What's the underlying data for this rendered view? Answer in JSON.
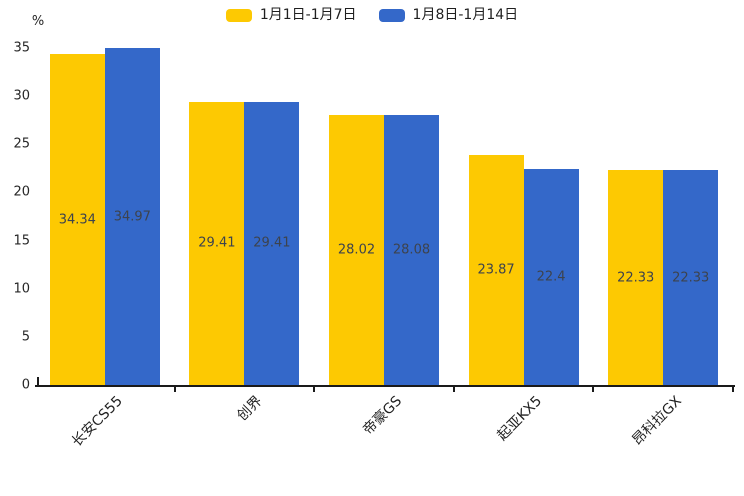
{
  "chart_data": {
    "type": "bar",
    "title": "",
    "unit_label": "%",
    "categories": [
      "长安CS55",
      "创界",
      "帝豪GS",
      "起亚KX5",
      "昂科拉GX"
    ],
    "series": [
      {
        "name": "1月1日-1月7日",
        "color": "#FDC902",
        "values": [
          34.34,
          29.41,
          28.02,
          23.87,
          22.33
        ]
      },
      {
        "name": "1月8日-1月14日",
        "color": "#3468C9",
        "values": [
          34.97,
          29.41,
          28.08,
          22.4,
          22.33
        ]
      }
    ],
    "y_ticks": [
      0,
      5,
      10,
      15,
      20,
      25,
      30,
      35
    ],
    "ylim": [
      0,
      35
    ],
    "legend_position": "top-center",
    "grid": false,
    "data_labels": "inside-middle",
    "bar_label_color": "#3d434d",
    "axis_color": "#1a1a1a"
  }
}
